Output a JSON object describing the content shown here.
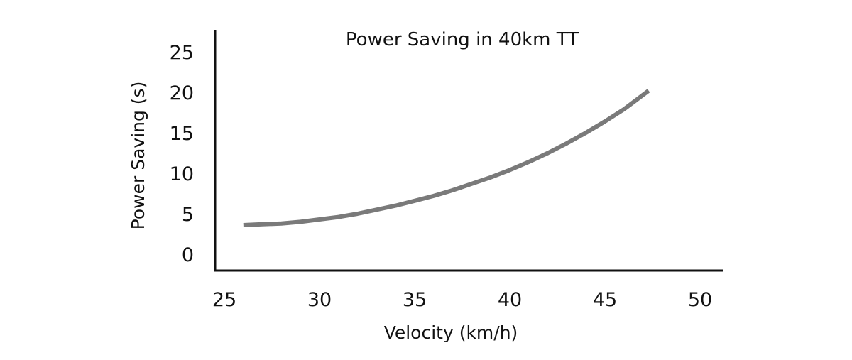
{
  "chart_data": {
    "type": "line",
    "title": "Power Saving in 40km TT",
    "xlabel": "Velocity (km/h)",
    "ylabel": "Power Saving (s)",
    "xlim": [
      25,
      50
    ],
    "ylim": [
      0,
      25
    ],
    "x_ticks": [
      "25",
      "30",
      "35",
      "40",
      "45",
      "50"
    ],
    "y_ticks": [
      "0",
      "5",
      "10",
      "15",
      "20",
      "25"
    ],
    "grid": false,
    "series": [
      {
        "color": "#7a7a7a",
        "x": [
          26,
          27,
          28,
          29,
          30,
          31,
          32,
          33,
          34,
          35,
          36,
          37,
          38,
          39,
          40,
          41,
          42,
          43,
          44,
          45,
          46,
          47.3
        ],
        "values": [
          3.6,
          3.7,
          3.8,
          4.0,
          4.3,
          4.6,
          5.0,
          5.5,
          6.0,
          6.6,
          7.2,
          7.9,
          8.7,
          9.5,
          10.4,
          11.4,
          12.5,
          13.7,
          15.0,
          16.4,
          17.9,
          20.2
        ]
      }
    ]
  }
}
